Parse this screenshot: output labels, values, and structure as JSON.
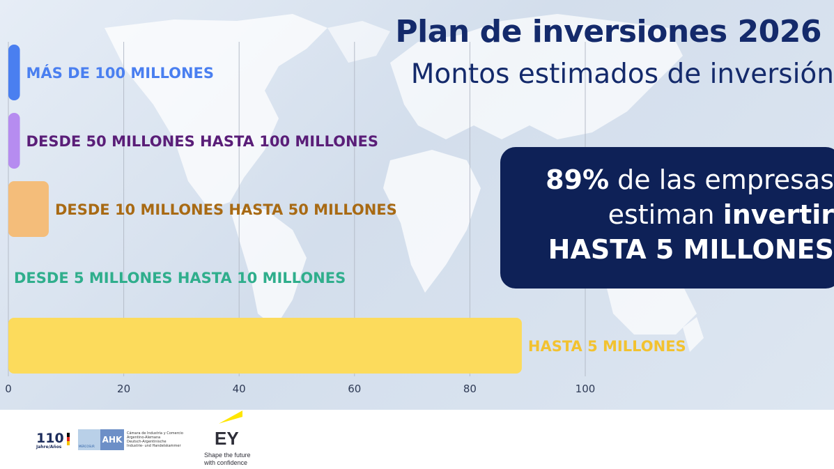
{
  "title": "Plan de inversiones 2026",
  "subtitle": "Montos estimados de inversión",
  "callout": {
    "percent": "89%",
    "line1_rest": " de las empresas",
    "line2_start": "estiman ",
    "line2_bold": "invertir",
    "line3": "HASTA 5 MILLONES"
  },
  "chart_data": {
    "type": "bar",
    "orientation": "horizontal",
    "categories": [
      "MÁS DE 100 MILLONES",
      "DESDE 50 MILLONES HASTA 100 MILLONES",
      "DESDE 10 MILLONES HASTA 50 MILLONES",
      "DESDE 5 MILLONES HASTA 10 MILLONES",
      "HASTA 5 MILLONES"
    ],
    "values": [
      2,
      2,
      7,
      0,
      89
    ],
    "colors": [
      "#4a7ff0",
      "#b68cf0",
      "#f4bd7a",
      "#2fae8c",
      "#fcdb5c"
    ],
    "label_colors": [
      "#4a7ff0",
      "#5a1e78",
      "#a86a14",
      "#2fae8c",
      "#f2c230"
    ],
    "xlim": [
      0,
      100
    ],
    "x_ticks": [
      0,
      20,
      40,
      60,
      80,
      100
    ],
    "grid": true
  },
  "footer": {
    "anniversary_logo": "110",
    "anniversary_sub": "Jahre/Años",
    "ahk_mark": "AHK",
    "ahk_small": "MERCOSUR",
    "ahk_text_1": "Cámara de Industria y Comercio",
    "ahk_text_2": "Argentino-Alemana",
    "ahk_text_3": "Deutsch-Argentinische",
    "ahk_text_4": "Industrie- und Handelskammer",
    "ey_mark": "EY",
    "ey_tag_1": "Shape the future",
    "ey_tag_2": "with confidence"
  }
}
